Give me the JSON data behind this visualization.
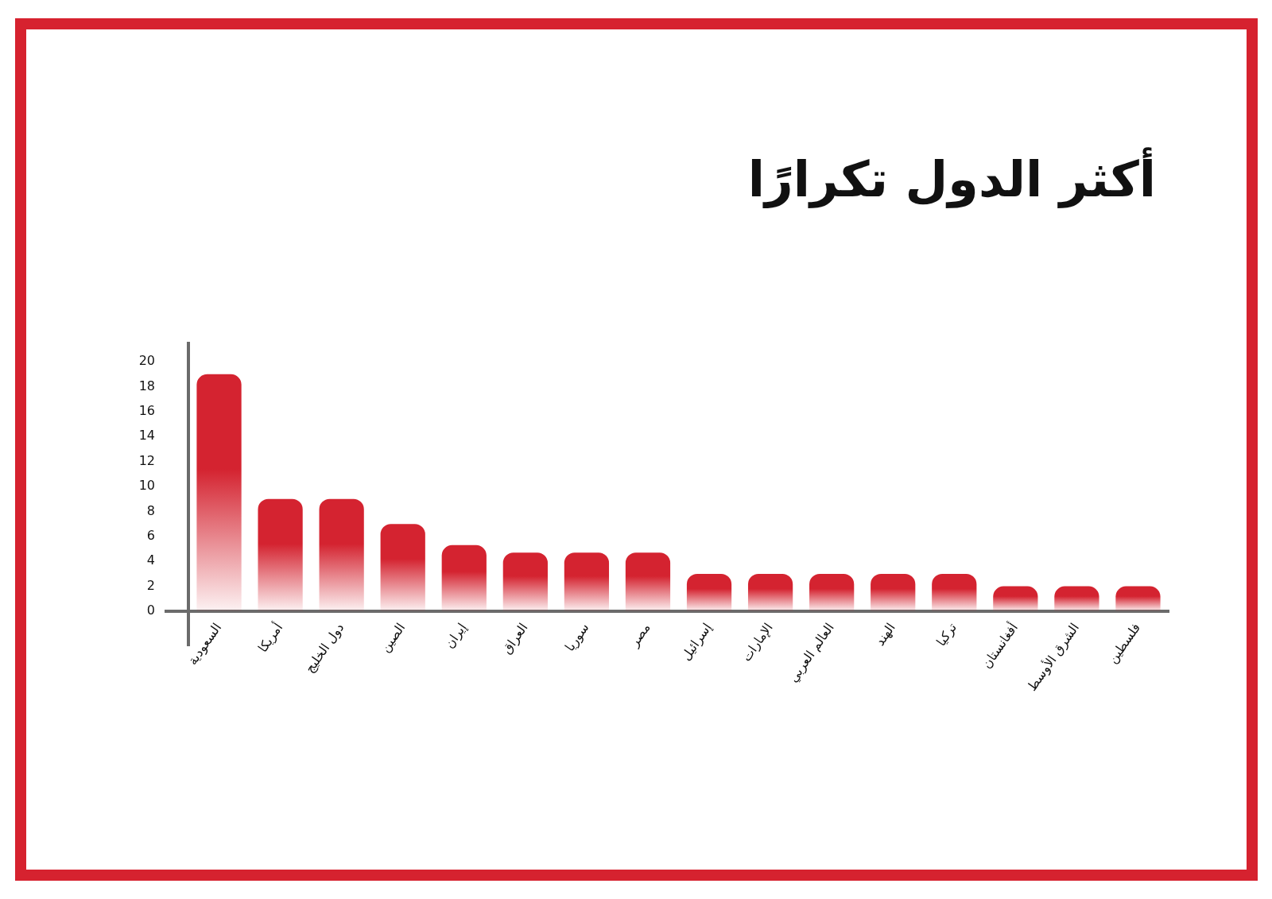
{
  "chart_data": {
    "type": "bar",
    "title": "أكثر الدول تكرارًا",
    "categories": [
      "السعودية",
      "أمريكا",
      "دول الخليج",
      "الصين",
      "إيران",
      "العراق",
      "سوريا",
      "مصر",
      "إسرائيل",
      "الإمارات",
      "العالم العربي",
      "الهند",
      "تركيا",
      "أفغانستان",
      "الشرق الأوسط",
      "فلسطين"
    ],
    "values": [
      19,
      9,
      9,
      7,
      5.3,
      4.7,
      4.7,
      4.7,
      3,
      3,
      3,
      3,
      3,
      2,
      2,
      2
    ],
    "color": "#d42330",
    "ylim": [
      0,
      21.5
    ],
    "yticks": [
      0,
      2,
      4,
      6,
      8,
      10,
      12,
      14,
      16,
      18,
      20
    ]
  }
}
